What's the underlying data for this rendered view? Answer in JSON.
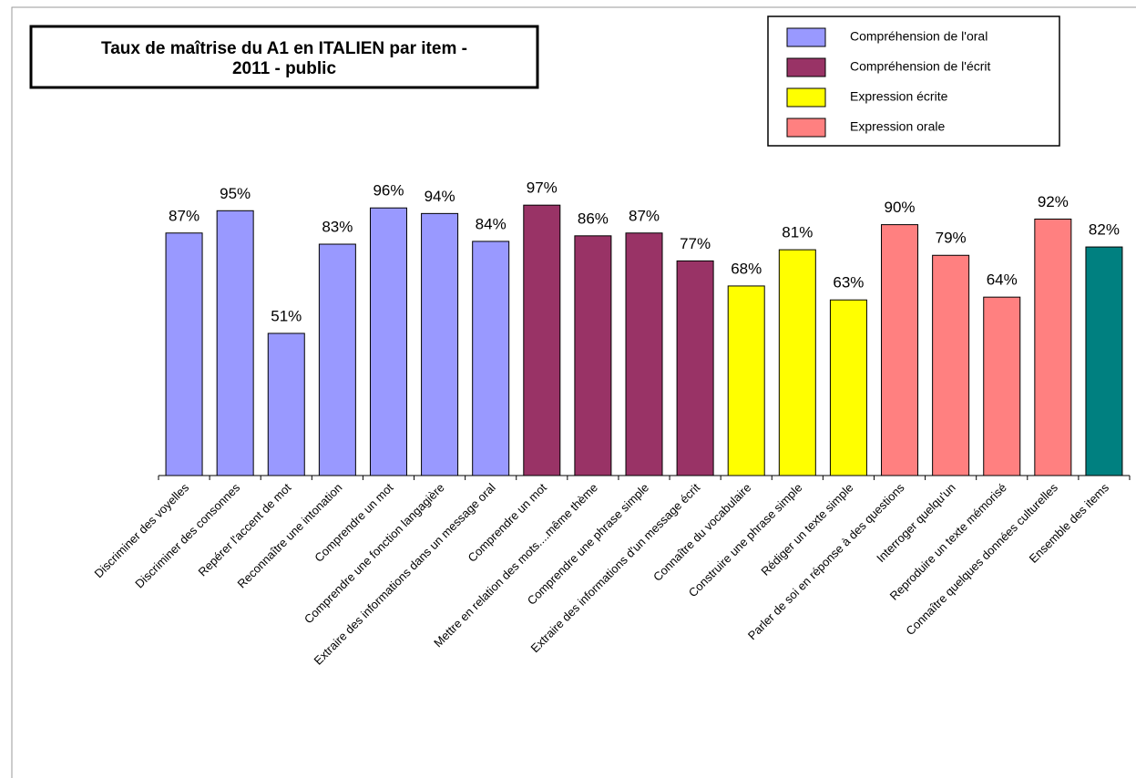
{
  "chart_data": {
    "type": "bar",
    "title": "Taux de maîtrise du A1 en ITALIEN par item -",
    "subtitle": "2011 - public",
    "categories": [
      "Discriminer des voyelles",
      "Discriminer des consonnes",
      "Repérer l'accent de mot",
      "Reconnaître une intonation",
      "Comprendre un mot",
      "Comprendre une fonction langagière",
      "Extraire des informations dans un message oral",
      "Comprendre un mot",
      "Mettre en relation des mots....même thème",
      "Comprendre une phrase simple",
      "Extraire des informations d'un message écrit",
      "Connaître du vocabulaire",
      "Construire une phrase simple",
      "Rédiger un texte simple",
      "Parler de soi en réponse à des questions",
      "Interroger quelqu'un",
      "Reproduire un texte mémorisé",
      "Connaître quelques données culturelles",
      "Ensemble des items"
    ],
    "values": [
      87,
      95,
      51,
      83,
      96,
      94,
      84,
      97,
      86,
      87,
      77,
      68,
      81,
      63,
      90,
      79,
      64,
      92,
      82
    ],
    "value_labels": [
      "87%",
      "95%",
      "51%",
      "83%",
      "96%",
      "94%",
      "84%",
      "97%",
      "86%",
      "87%",
      "77%",
      "68%",
      "81%",
      "63%",
      "90%",
      "79%",
      "64%",
      "92%",
      "82%"
    ],
    "colors": [
      "#9999ff",
      "#9999ff",
      "#9999ff",
      "#9999ff",
      "#9999ff",
      "#9999ff",
      "#9999ff",
      "#993366",
      "#993366",
      "#993366",
      "#993366",
      "#ffff00",
      "#ffff00",
      "#ffff00",
      "#ff8080",
      "#ff8080",
      "#ff8080",
      "#ff8080",
      "#008080"
    ],
    "legend": [
      {
        "name": "Compréhension de l'oral",
        "color": "#9999ff"
      },
      {
        "name": "Compréhension de l'écrit",
        "color": "#993366"
      },
      {
        "name": "Expression écrite",
        "color": "#ffff00"
      },
      {
        "name": "Expression orale",
        "color": "#ff8080"
      }
    ],
    "ylim": [
      0,
      100
    ]
  }
}
